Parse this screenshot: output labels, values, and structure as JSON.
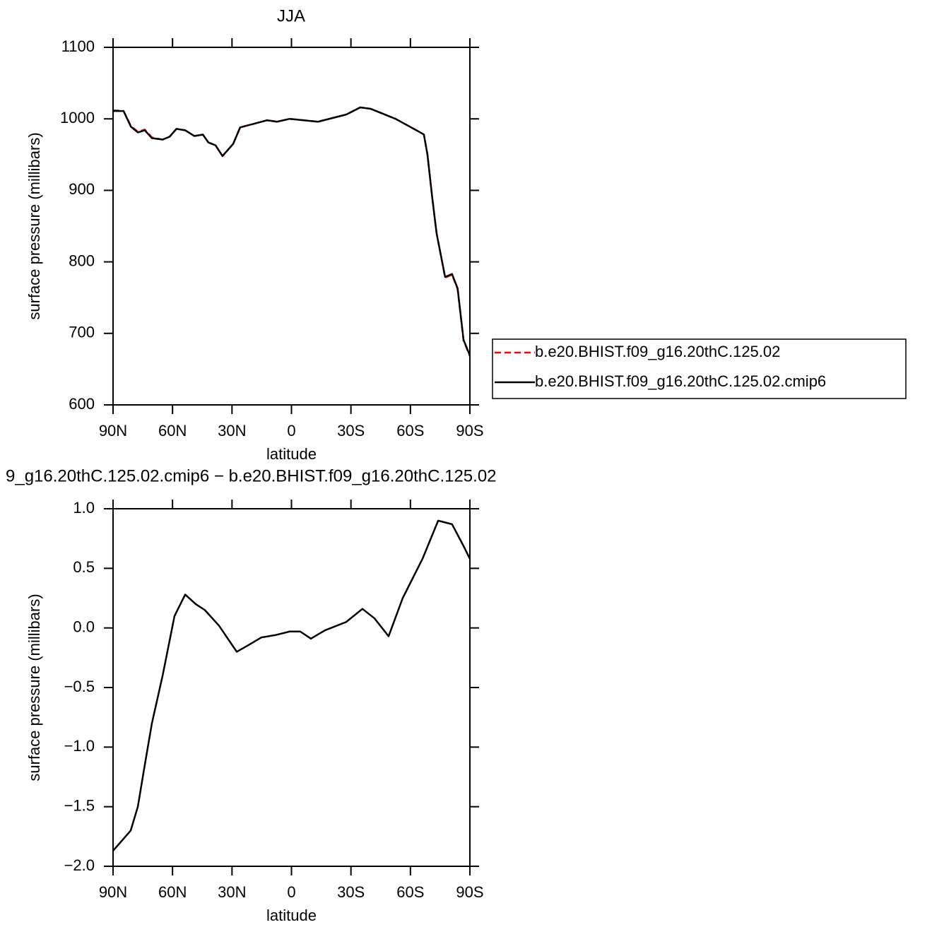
{
  "chart_data": [
    {
      "type": "line",
      "title": "JJA",
      "xlabel": "latitude",
      "ylabel": "surface pressure (millibars)",
      "x": [
        90,
        84.7,
        81,
        77.5,
        74,
        70.4,
        65,
        61.5,
        58,
        53.6,
        49,
        44.7,
        41.9,
        38.3,
        34.8,
        29.4,
        25.9,
        20.5,
        12.3,
        7.3,
        0.9,
        -13.4,
        -27.6,
        -34.7,
        -40,
        -52.5,
        -65,
        -66.8,
        -68.6,
        -71,
        -73.2,
        -77.5,
        -81,
        -83.8,
        -86.8,
        -90
      ],
      "series": [
        {
          "name": "b.e20.BHIST.f09_g16.20thC.125.02",
          "color": "#ff0000",
          "dashed": true,
          "values": [
            1012,
            1011,
            990,
            982,
            985,
            974,
            971,
            975,
            986,
            984,
            976,
            978,
            967,
            963,
            948,
            965,
            988,
            992,
            998,
            996,
            1000,
            996,
            1006,
            1016,
            1014,
            1000,
            981,
            978,
            950,
            890,
            840,
            778,
            782,
            762,
            690,
            668
          ]
        },
        {
          "name": "b.e20.BHIST.f09_g16.20thC.125.02.cmip6",
          "color": "#000000",
          "dashed": false,
          "values": [
            1011,
            1011,
            989,
            981,
            984,
            973,
            971,
            975,
            986,
            984,
            976,
            978,
            967,
            963,
            948,
            965,
            988,
            992,
            998,
            996,
            1000,
            996,
            1006,
            1016,
            1014,
            1000,
            981,
            978,
            950,
            890,
            840,
            779,
            783,
            763,
            691,
            669
          ]
        }
      ],
      "xlim": [
        90,
        -90
      ],
      "xticks": [
        {
          "value": 90,
          "label": "90N"
        },
        {
          "value": 60,
          "label": "60N"
        },
        {
          "value": 30,
          "label": "30N"
        },
        0,
        {
          "value": -30,
          "label": "30S"
        },
        {
          "value": -60,
          "label": "60S"
        },
        {
          "value": -90,
          "label": "90S"
        }
      ],
      "ylim": [
        600,
        1100
      ],
      "yticks": [
        600,
        700,
        800,
        900,
        1000,
        1100
      ]
    },
    {
      "type": "line",
      "title": "9_g16.20thC.125.02.cmip6 − b.e20.BHIST.f09_g16.20thC.125.02",
      "xlabel": "latitude",
      "ylabel": "surface pressure (millibars)",
      "x": [
        90,
        81.1,
        77.5,
        74,
        70.4,
        65,
        59,
        53.6,
        48.3,
        43.7,
        36.6,
        27.6,
        22.3,
        15.2,
        8.1,
        0.9,
        -4.4,
        -9.8,
        -16.9,
        -27.6,
        -35.8,
        -41.9,
        -49,
        -56.1,
        -66.1,
        -74,
        -81,
        -86.4,
        -90
      ],
      "series": [
        {
          "color": "#000000",
          "dashed": false,
          "values": [
            -1.87,
            -1.7,
            -1.5,
            -1.15,
            -0.8,
            -0.4,
            0.1,
            0.28,
            0.2,
            0.15,
            0.02,
            -0.2,
            -0.15,
            -0.08,
            -0.06,
            -0.03,
            -0.03,
            -0.09,
            -0.02,
            0.05,
            0.16,
            0.08,
            -0.07,
            0.25,
            0.58,
            0.9,
            0.87,
            0.7,
            0.58
          ]
        }
      ],
      "xlim": [
        90,
        -90
      ],
      "xticks": [
        {
          "value": 90,
          "label": "90N"
        },
        {
          "value": 60,
          "label": "60N"
        },
        {
          "value": 30,
          "label": "30N"
        },
        0,
        {
          "value": -30,
          "label": "30S"
        },
        {
          "value": -60,
          "label": "60S"
        },
        {
          "value": -90,
          "label": "90S"
        }
      ],
      "ylim": [
        -2,
        1
      ],
      "yticks": [
        {
          "value": -2,
          "label": "−2.0"
        },
        {
          "value": -1.5,
          "label": "−1.5"
        },
        {
          "value": -1,
          "label": "−1.0"
        },
        {
          "value": -0.5,
          "label": "−0.5"
        },
        {
          "value": 0,
          "label": "0.0"
        },
        {
          "value": 0.5,
          "label": "0.5"
        },
        {
          "value": 1,
          "label": "1.0"
        }
      ]
    }
  ]
}
